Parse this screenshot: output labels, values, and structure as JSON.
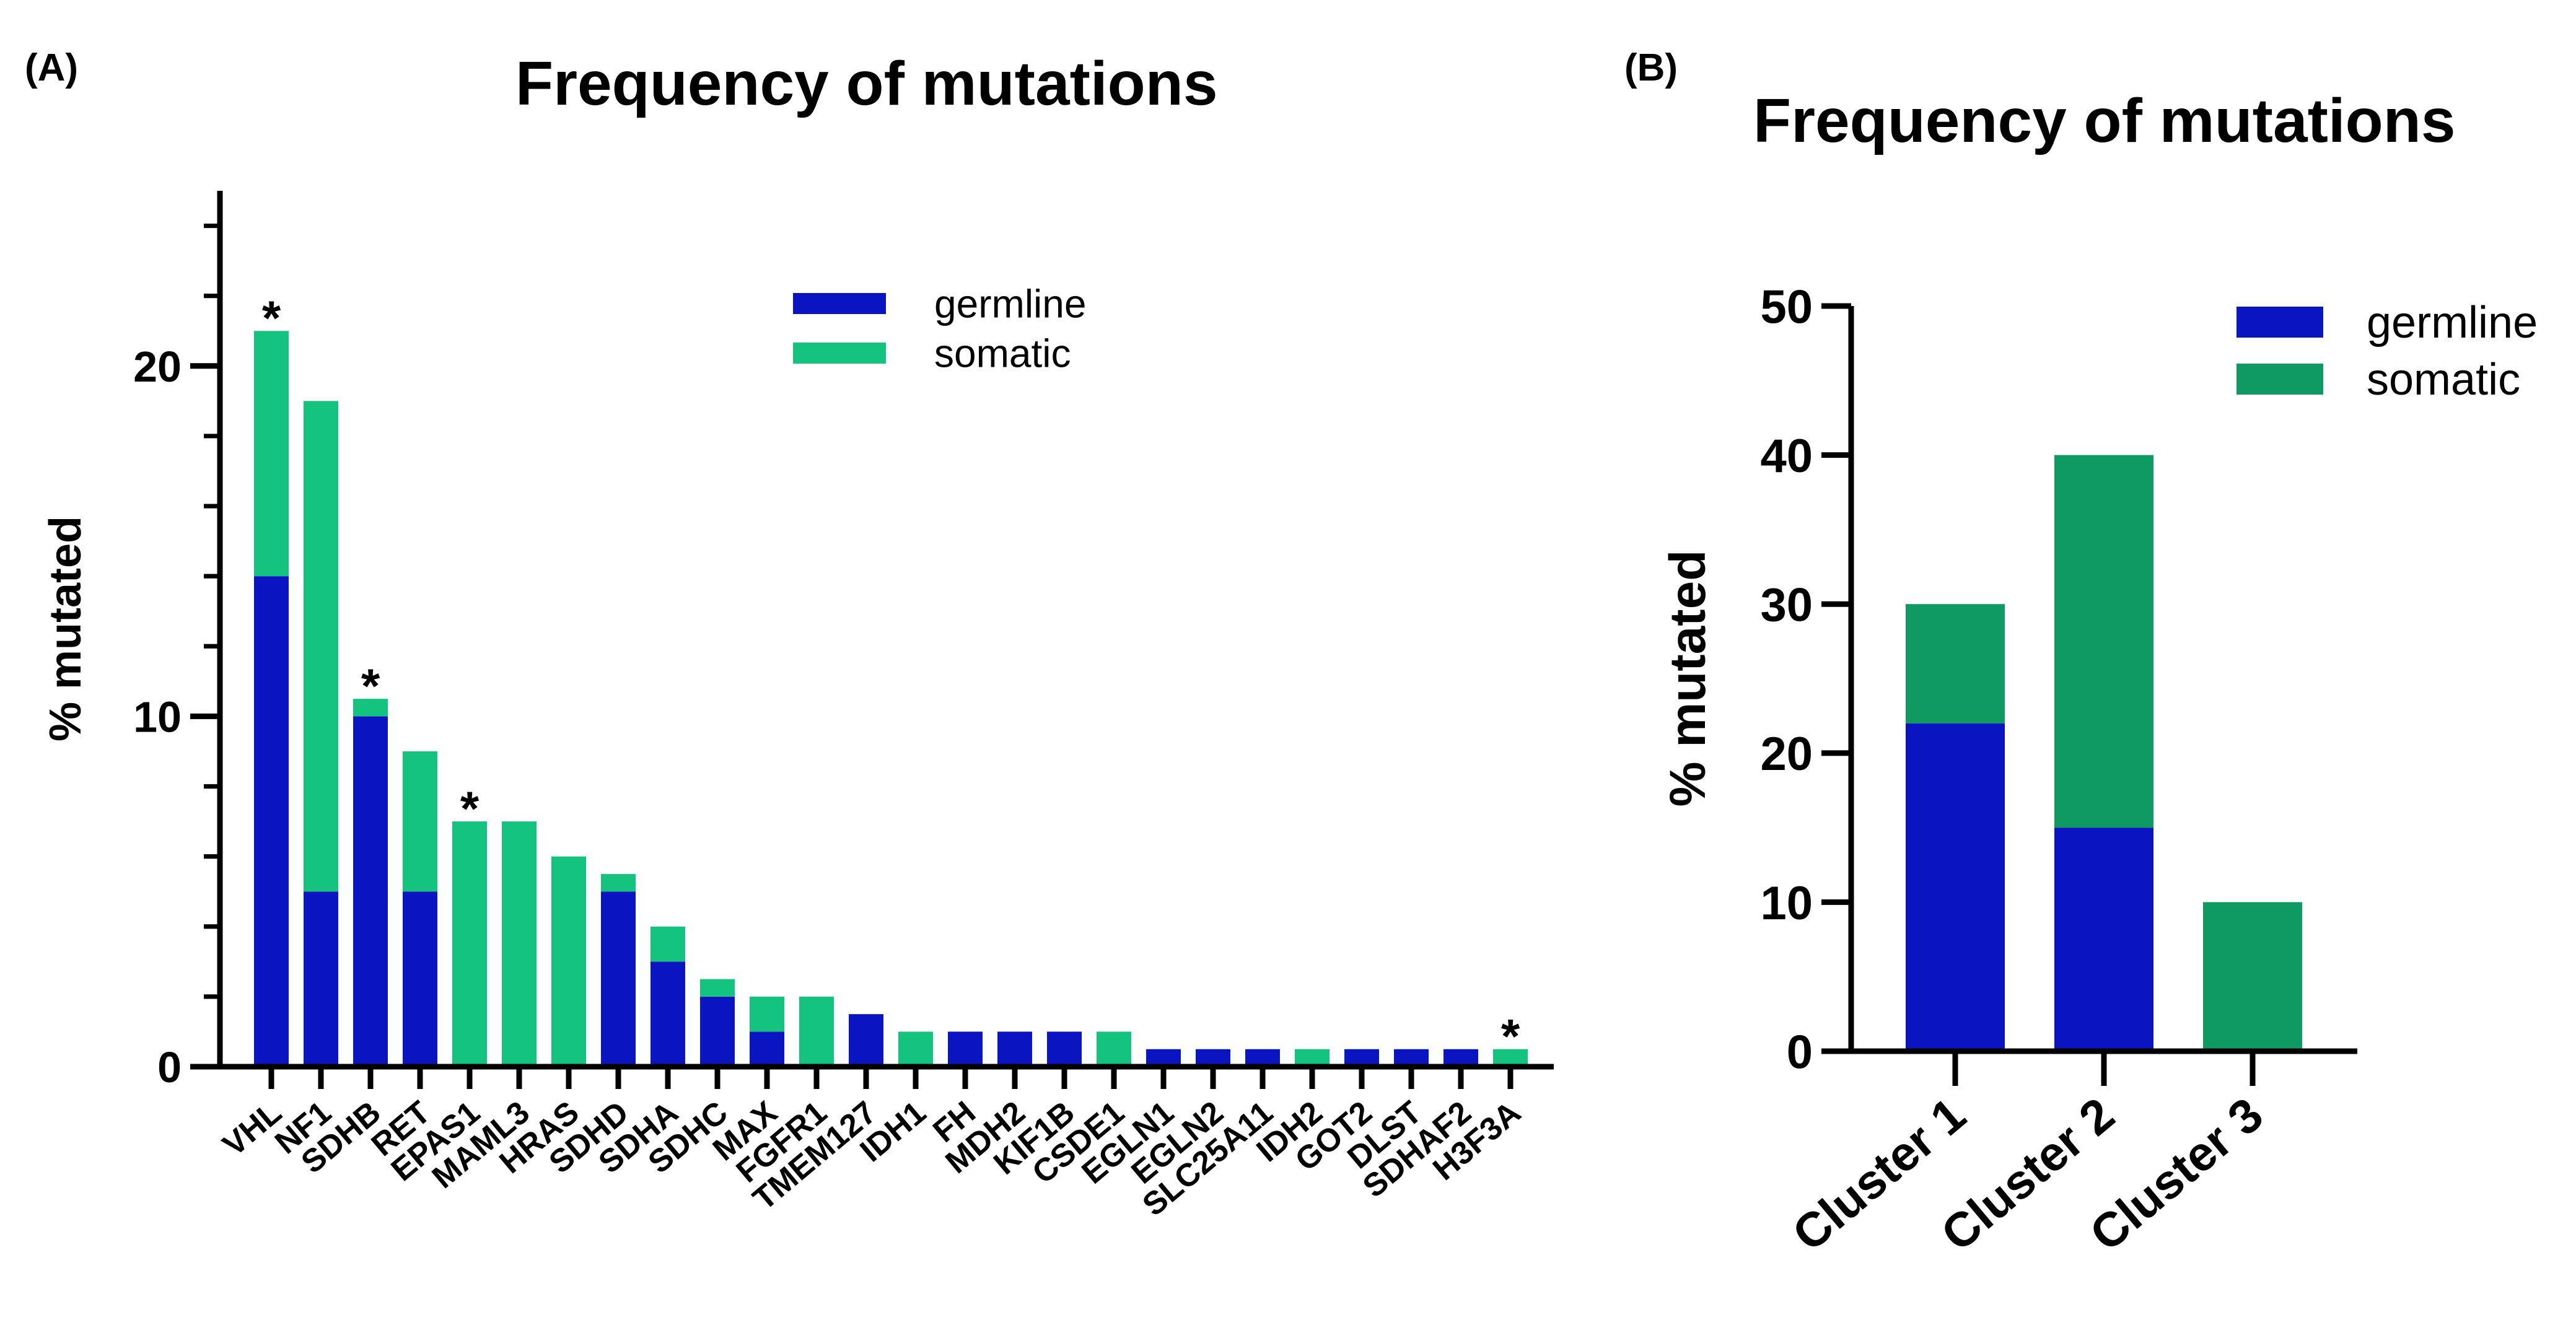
{
  "chart_data": [
    {
      "panel": "(A)",
      "type": "bar",
      "stacked": true,
      "title": "Frequency of mutations",
      "xlabel": "",
      "ylabel": "% mutated",
      "ylim": [
        0,
        25
      ],
      "yticks": [
        0,
        10,
        20
      ],
      "categories": [
        "VHL",
        "NF1",
        "SDHB",
        "RET",
        "EPAS1",
        "MAML3",
        "HRAS",
        "SDHD",
        "SDHA",
        "SDHC",
        "MAX",
        "FGFR1",
        "TMEM127",
        "IDH1",
        "FH",
        "MDH2",
        "KIF1B",
        "CSDE1",
        "EGLN1",
        "EGLN2",
        "SLC25A11",
        "IDH2",
        "GOT2",
        "DLST",
        "SDHAF2",
        "H3F3A"
      ],
      "series": [
        {
          "name": "germline",
          "color": "#0a14c0",
          "values": [
            14,
            5,
            10,
            5,
            0,
            0,
            0,
            5,
            3,
            2,
            1,
            0,
            1.5,
            0,
            1,
            1,
            1,
            0,
            0.5,
            0.5,
            0.5,
            0,
            0.5,
            0.5,
            0.5,
            0
          ]
        },
        {
          "name": "somatic",
          "color": "#14c47e",
          "values": [
            7,
            14,
            0.5,
            4,
            7,
            7,
            6,
            0.5,
            1,
            0.5,
            1,
            2,
            0,
            1,
            0,
            0,
            0,
            1,
            0,
            0,
            0,
            0.5,
            0,
            0,
            0,
            0.5
          ]
        }
      ],
      "annotations": [
        {
          "category": "VHL",
          "text": "*"
        },
        {
          "category": "SDHB",
          "text": "*"
        },
        {
          "category": "EPAS1",
          "text": "*"
        },
        {
          "category": "H3F3A",
          "text": "*"
        }
      ],
      "legend_position": "top-right"
    },
    {
      "panel": "(B)",
      "type": "bar",
      "stacked": true,
      "title": "Frequency of mutations",
      "xlabel": "",
      "ylabel": "% mutated",
      "ylim": [
        0,
        50
      ],
      "yticks": [
        0,
        10,
        20,
        30,
        40,
        50
      ],
      "categories": [
        "Cluster 1",
        "Cluster 2",
        "Cluster 3"
      ],
      "series": [
        {
          "name": "germline",
          "color": "#0a14c0",
          "values": [
            22,
            15,
            0
          ]
        },
        {
          "name": "somatic",
          "color": "#0f9a62",
          "values": [
            8,
            25,
            10
          ]
        }
      ],
      "legend_position": "top-right"
    }
  ]
}
